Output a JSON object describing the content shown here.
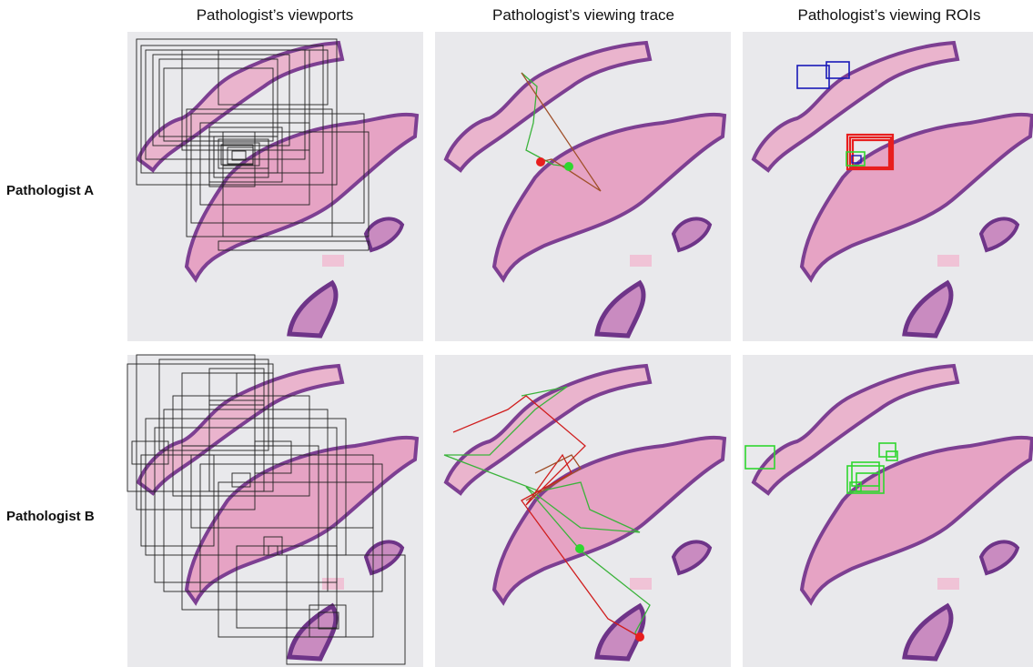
{
  "columns": [
    "Pathologist’s viewports",
    "Pathologist’s viewing trace",
    "Pathologist’s viewing ROIs"
  ],
  "rows": [
    "Pathologist A",
    "Pathologist B"
  ]
}
